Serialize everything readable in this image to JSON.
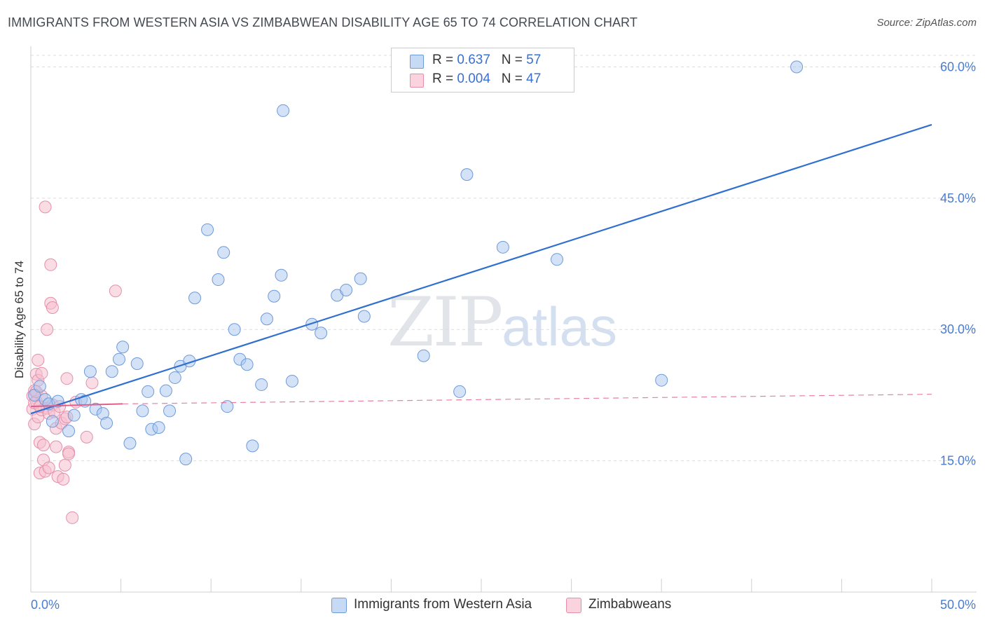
{
  "title": "IMMIGRANTS FROM WESTERN ASIA VS ZIMBABWEAN DISABILITY AGE 65 TO 74 CORRELATION CHART",
  "source": "Source: ZipAtlas.com",
  "watermark": {
    "zip": "ZIP",
    "atlas": "atlas"
  },
  "legend": {
    "rows": [
      {
        "r_label": "R =",
        "r_value": "0.637",
        "n_label": "N =",
        "n_value": "57",
        "color": "#a9c6f0",
        "border": "#6d9ad9"
      },
      {
        "r_label": "R =",
        "r_value": "0.004",
        "n_label": "N =",
        "n_value": "47",
        "color": "#f6bfd0",
        "border": "#e58fab"
      }
    ]
  },
  "bottom_legend": [
    {
      "label": "Immigrants from Western Asia",
      "color": "#c7daf5",
      "border": "#6d9ad9"
    },
    {
      "label": "Zimbabweans",
      "color": "#fad3df",
      "border": "#e58fab"
    }
  ],
  "chart_data": {
    "type": "scatter",
    "title": "IMMIGRANTS FROM WESTERN ASIA VS ZIMBABWEAN DISABILITY AGE 65 TO 74 CORRELATION CHART",
    "xlabel": "",
    "ylabel": "Disability Age 65 to 74",
    "xlim": [
      0,
      50
    ],
    "ylim": [
      0,
      63
    ],
    "x_tick_labels": [
      "0.0%",
      "50.0%"
    ],
    "y_ticks": [
      15,
      30,
      45,
      60
    ],
    "y_tick_labels": [
      "15.0%",
      "30.0%",
      "45.0%",
      "60.0%"
    ],
    "grid": true,
    "series": [
      {
        "name": "Immigrants from Western Asia",
        "color": "#a9c6f0",
        "edge": "#6d9ad9",
        "trend": {
          "x": [
            0,
            50
          ],
          "y": [
            20.4,
            53.4
          ],
          "style": "solid",
          "color": "#2f6fd0"
        },
        "points": [
          [
            0.2,
            22.5
          ],
          [
            0.5,
            23.5
          ],
          [
            0.8,
            22.0
          ],
          [
            1.0,
            21.5
          ],
          [
            1.5,
            21.8
          ],
          [
            1.2,
            19.5
          ],
          [
            2.1,
            18.4
          ],
          [
            2.4,
            20.2
          ],
          [
            2.8,
            22.0
          ],
          [
            3.0,
            21.8
          ],
          [
            3.3,
            25.2
          ],
          [
            3.6,
            20.9
          ],
          [
            4.0,
            20.4
          ],
          [
            4.2,
            19.3
          ],
          [
            4.5,
            25.2
          ],
          [
            4.9,
            26.6
          ],
          [
            5.1,
            28.0
          ],
          [
            5.5,
            17.0
          ],
          [
            5.9,
            26.1
          ],
          [
            6.2,
            20.7
          ],
          [
            6.5,
            22.9
          ],
          [
            6.7,
            18.6
          ],
          [
            7.1,
            18.8
          ],
          [
            7.5,
            23.0
          ],
          [
            7.7,
            20.7
          ],
          [
            8.0,
            24.5
          ],
          [
            8.3,
            25.8
          ],
          [
            8.6,
            15.2
          ],
          [
            8.8,
            26.4
          ],
          [
            9.1,
            33.6
          ],
          [
            9.8,
            41.4
          ],
          [
            10.4,
            35.7
          ],
          [
            10.7,
            38.8
          ],
          [
            10.9,
            21.2
          ],
          [
            11.3,
            30.0
          ],
          [
            11.6,
            26.6
          ],
          [
            12.0,
            26.0
          ],
          [
            12.3,
            16.7
          ],
          [
            12.8,
            23.7
          ],
          [
            13.1,
            31.2
          ],
          [
            13.5,
            33.8
          ],
          [
            13.9,
            36.2
          ],
          [
            14.0,
            55.0
          ],
          [
            14.5,
            24.1
          ],
          [
            15.6,
            30.6
          ],
          [
            16.1,
            29.6
          ],
          [
            17.0,
            33.9
          ],
          [
            17.5,
            34.5
          ],
          [
            18.3,
            35.8
          ],
          [
            18.5,
            31.5
          ],
          [
            21.8,
            27.0
          ],
          [
            23.8,
            22.9
          ],
          [
            24.2,
            47.7
          ],
          [
            26.2,
            39.4
          ],
          [
            29.2,
            38.0
          ],
          [
            35.0,
            24.2
          ],
          [
            42.5,
            60.0
          ]
        ]
      },
      {
        "name": "Zimbabweans",
        "color": "#f6bfd0",
        "edge": "#e58fab",
        "trend": {
          "x": [
            0,
            5.1
          ],
          "y": [
            21.2,
            21.5
          ],
          "style": "solid",
          "color": "#e0608c",
          "extension": {
            "x": [
              5.1,
              50
            ],
            "y": [
              21.5,
              22.6
            ],
            "style": "dashed"
          }
        },
        "points": [
          [
            0.1,
            22.4
          ],
          [
            0.1,
            20.9
          ],
          [
            0.2,
            23.0
          ],
          [
            0.2,
            19.2
          ],
          [
            0.3,
            21.8
          ],
          [
            0.3,
            24.9
          ],
          [
            0.4,
            26.5
          ],
          [
            0.4,
            24.2
          ],
          [
            0.4,
            20.0
          ],
          [
            0.5,
            17.1
          ],
          [
            0.5,
            13.6
          ],
          [
            0.6,
            25.0
          ],
          [
            0.6,
            22.4
          ],
          [
            0.6,
            20.8
          ],
          [
            0.7,
            16.8
          ],
          [
            0.7,
            15.1
          ],
          [
            0.8,
            13.8
          ],
          [
            0.8,
            44.0
          ],
          [
            0.9,
            30.0
          ],
          [
            0.9,
            21.0
          ],
          [
            1.0,
            14.2
          ],
          [
            1.0,
            20.4
          ],
          [
            1.1,
            33.0
          ],
          [
            1.1,
            37.4
          ],
          [
            1.2,
            32.5
          ],
          [
            1.2,
            21.4
          ],
          [
            1.3,
            20.6
          ],
          [
            1.4,
            18.7
          ],
          [
            1.4,
            16.6
          ],
          [
            1.5,
            13.2
          ],
          [
            1.6,
            21.2
          ],
          [
            1.7,
            19.3
          ],
          [
            1.8,
            12.9
          ],
          [
            1.9,
            19.8
          ],
          [
            1.9,
            14.5
          ],
          [
            2.0,
            24.4
          ],
          [
            2.0,
            20.0
          ],
          [
            2.1,
            16.0
          ],
          [
            2.1,
            15.8
          ],
          [
            2.3,
            8.5
          ],
          [
            2.5,
            21.7
          ],
          [
            3.1,
            17.7
          ],
          [
            3.4,
            23.9
          ],
          [
            4.7,
            34.4
          ],
          [
            0.2,
            21.6
          ],
          [
            0.3,
            22.9
          ],
          [
            0.5,
            21.2
          ]
        ]
      }
    ]
  }
}
